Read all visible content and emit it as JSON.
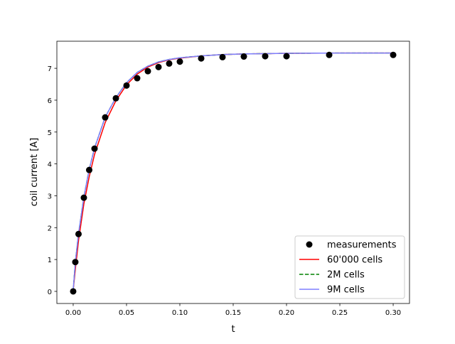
{
  "chart_data": {
    "type": "line",
    "title": "",
    "xlabel": "t",
    "ylabel": "coil current [A]",
    "xlim": [
      -0.0153,
      0.3153
    ],
    "ylim": [
      -0.38,
      7.85
    ],
    "xticks": [
      "0.00",
      "0.05",
      "0.10",
      "0.15",
      "0.20",
      "0.25",
      "0.30"
    ],
    "yticks": [
      "0",
      "1",
      "2",
      "3",
      "4",
      "5",
      "6",
      "7"
    ],
    "grid": false,
    "legend_position": "lower right",
    "series": [
      {
        "name": "measurements",
        "style": "markers",
        "color": "#000000",
        "x": [
          0,
          0.002,
          0.005,
          0.01,
          0.015,
          0.02,
          0.03,
          0.04,
          0.05,
          0.06,
          0.07,
          0.08,
          0.09,
          0.1,
          0.12,
          0.14,
          0.16,
          0.18,
          0.2,
          0.24,
          0.3
        ],
        "y": [
          0,
          0.92,
          1.8,
          2.94,
          3.81,
          4.48,
          5.46,
          6.06,
          6.46,
          6.69,
          6.91,
          7.04,
          7.15,
          7.21,
          7.31,
          7.35,
          7.37,
          7.38,
          7.38,
          7.42,
          7.42
        ]
      },
      {
        "name": "60'000 cells",
        "style": "solid",
        "color": "#ff0000",
        "x": [
          0,
          0.002,
          0.005,
          0.01,
          0.015,
          0.02,
          0.03,
          0.04,
          0.05,
          0.06,
          0.07,
          0.08,
          0.09,
          0.1,
          0.12,
          0.14,
          0.16,
          0.2,
          0.25,
          0.3
        ],
        "y": [
          0.05,
          0.7,
          1.6,
          2.75,
          3.6,
          4.3,
          5.3,
          5.98,
          6.48,
          6.82,
          7.04,
          7.18,
          7.27,
          7.32,
          7.39,
          7.43,
          7.45,
          7.47,
          7.48,
          7.48
        ]
      },
      {
        "name": "2M cells",
        "style": "dashed",
        "color": "#008000",
        "x": [
          0,
          0.002,
          0.005,
          0.01,
          0.015,
          0.02,
          0.03,
          0.04,
          0.05,
          0.06,
          0.07,
          0.08,
          0.09,
          0.1,
          0.12,
          0.14,
          0.16,
          0.2,
          0.25,
          0.3
        ],
        "y": [
          0.05,
          0.92,
          1.82,
          2.96,
          3.83,
          4.5,
          5.47,
          6.08,
          6.55,
          6.87,
          7.07,
          7.2,
          7.28,
          7.33,
          7.39,
          7.43,
          7.45,
          7.47,
          7.48,
          7.48
        ]
      },
      {
        "name": "9M cells",
        "style": "solid",
        "color": "#7f7fff",
        "x": [
          0,
          0.002,
          0.005,
          0.01,
          0.015,
          0.02,
          0.03,
          0.04,
          0.05,
          0.06,
          0.07,
          0.08,
          0.09,
          0.1,
          0.12,
          0.14,
          0.16,
          0.2,
          0.25,
          0.3
        ],
        "y": [
          0.05,
          0.92,
          1.82,
          2.96,
          3.83,
          4.5,
          5.47,
          6.08,
          6.55,
          6.87,
          7.07,
          7.2,
          7.28,
          7.33,
          7.39,
          7.43,
          7.45,
          7.47,
          7.48,
          7.48
        ]
      }
    ]
  }
}
